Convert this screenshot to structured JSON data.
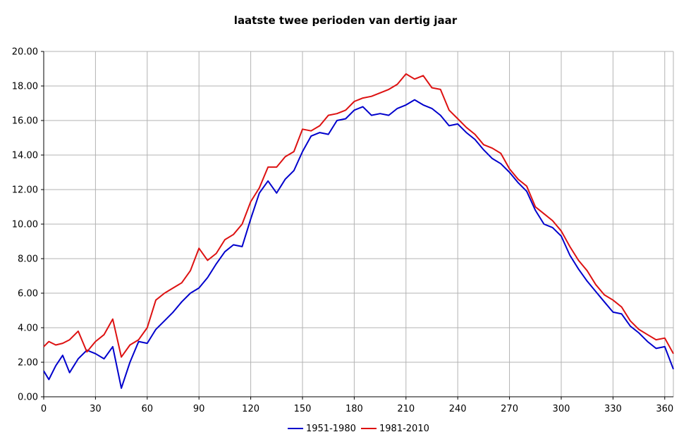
{
  "chart_data": {
    "type": "line",
    "title": "laatste twee perioden van dertig jaar",
    "xlabel": "",
    "ylabel": "",
    "xlim": [
      0,
      365
    ],
    "ylim": [
      0,
      20
    ],
    "x_ticks": [
      0,
      30,
      60,
      90,
      120,
      150,
      180,
      210,
      240,
      270,
      300,
      330,
      360
    ],
    "x_tick_labels": [
      "0",
      "30",
      "60",
      "90",
      "120",
      "150",
      "180",
      "210",
      "240",
      "270",
      "300",
      "330",
      "360"
    ],
    "y_ticks": [
      0,
      2,
      4,
      6,
      8,
      10,
      12,
      14,
      16,
      18,
      20
    ],
    "y_tick_labels": [
      "0.00",
      "2.00",
      "4.00",
      "6.00",
      "8.00",
      "10.00",
      "12.00",
      "14.00",
      "16.00",
      "18.00",
      "20.00"
    ],
    "grid": true,
    "legend_position": "bottom-center",
    "series": [
      {
        "name": "1951-1980",
        "color": "#0000cc",
        "x": [
          0,
          3,
          7,
          11,
          15,
          20,
          25,
          30,
          35,
          40,
          45,
          50,
          55,
          60,
          65,
          70,
          75,
          80,
          85,
          90,
          95,
          100,
          105,
          110,
          115,
          120,
          125,
          130,
          135,
          140,
          145,
          150,
          155,
          160,
          165,
          170,
          175,
          180,
          185,
          190,
          195,
          200,
          205,
          210,
          215,
          220,
          225,
          230,
          235,
          240,
          245,
          250,
          255,
          260,
          265,
          270,
          275,
          280,
          285,
          290,
          295,
          300,
          305,
          310,
          315,
          320,
          325,
          330,
          335,
          340,
          345,
          350,
          355,
          360,
          365
        ],
        "y": [
          1.5,
          1.0,
          1.8,
          2.4,
          1.4,
          2.2,
          2.7,
          2.5,
          2.2,
          2.9,
          0.5,
          2.0,
          3.2,
          3.1,
          3.9,
          4.4,
          4.9,
          5.5,
          6.0,
          6.3,
          6.9,
          7.7,
          8.4,
          8.8,
          8.7,
          10.3,
          11.8,
          12.5,
          11.8,
          12.6,
          13.1,
          14.2,
          15.1,
          15.3,
          15.2,
          16.0,
          16.1,
          16.6,
          16.8,
          16.3,
          16.4,
          16.3,
          16.7,
          16.9,
          17.2,
          16.9,
          16.7,
          16.3,
          15.7,
          15.8,
          15.3,
          14.9,
          14.3,
          13.8,
          13.5,
          13.0,
          12.4,
          11.9,
          10.8,
          10.0,
          9.8,
          9.3,
          8.2,
          7.4,
          6.7,
          6.1,
          5.5,
          4.9,
          4.8,
          4.1,
          3.7,
          3.2,
          2.8,
          2.9,
          1.6
        ]
      },
      {
        "name": "1981-2010",
        "color": "#dd1111",
        "x": [
          0,
          3,
          7,
          11,
          15,
          20,
          25,
          30,
          35,
          40,
          45,
          50,
          55,
          60,
          65,
          70,
          75,
          80,
          85,
          90,
          95,
          100,
          105,
          110,
          115,
          120,
          125,
          130,
          135,
          140,
          145,
          150,
          155,
          160,
          165,
          170,
          175,
          180,
          185,
          190,
          195,
          200,
          205,
          210,
          215,
          220,
          225,
          230,
          235,
          240,
          245,
          250,
          255,
          260,
          265,
          270,
          275,
          280,
          285,
          290,
          295,
          300,
          305,
          310,
          315,
          320,
          325,
          330,
          335,
          340,
          345,
          350,
          355,
          360,
          365
        ],
        "y": [
          2.9,
          3.2,
          3.0,
          3.1,
          3.3,
          3.8,
          2.6,
          3.2,
          3.6,
          4.5,
          2.3,
          3.0,
          3.3,
          4.0,
          5.6,
          6.0,
          6.3,
          6.6,
          7.3,
          8.6,
          7.9,
          8.3,
          9.1,
          9.4,
          10.0,
          11.3,
          12.1,
          13.3,
          13.3,
          13.9,
          14.2,
          15.5,
          15.4,
          15.7,
          16.3,
          16.4,
          16.6,
          17.1,
          17.3,
          17.4,
          17.6,
          17.8,
          18.1,
          18.7,
          18.4,
          18.6,
          17.9,
          17.8,
          16.6,
          16.1,
          15.6,
          15.2,
          14.6,
          14.4,
          14.1,
          13.2,
          12.6,
          12.2,
          11.0,
          10.6,
          10.2,
          9.6,
          8.7,
          7.9,
          7.3,
          6.5,
          5.9,
          5.6,
          5.2,
          4.4,
          3.9,
          3.6,
          3.3,
          3.4,
          2.5
        ]
      }
    ]
  }
}
